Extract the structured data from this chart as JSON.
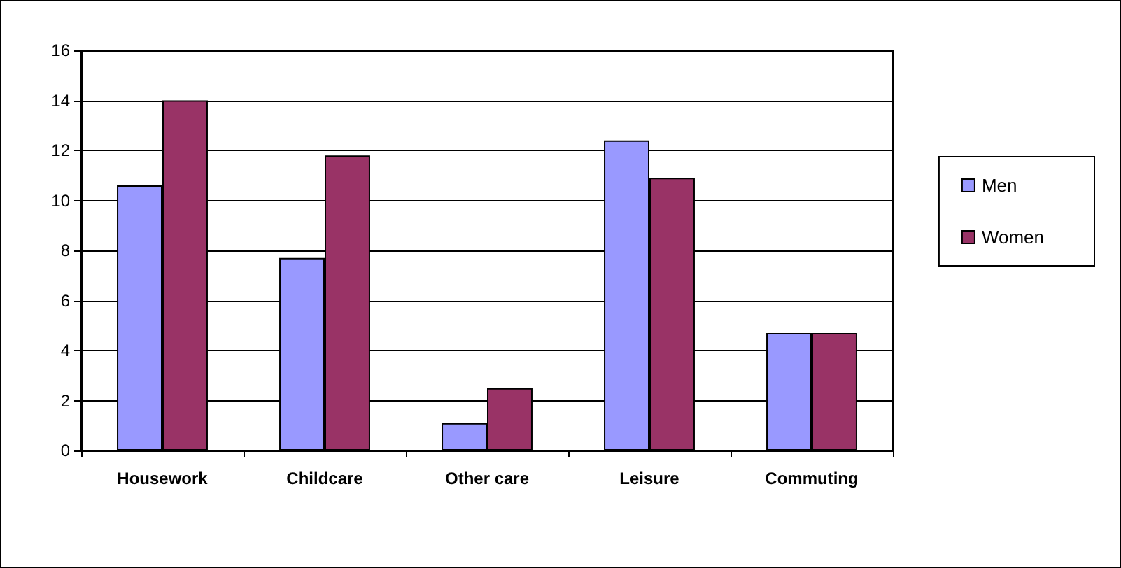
{
  "chart_data": {
    "type": "bar",
    "categories": [
      "Housework",
      "Childcare",
      "Other care",
      "Leisure",
      "Commuting"
    ],
    "series": [
      {
        "name": "Men",
        "color": "#9999ff",
        "values": [
          10.6,
          7.7,
          1.1,
          12.4,
          4.7
        ]
      },
      {
        "name": "Women",
        "color": "#993366",
        "values": [
          14.0,
          11.8,
          2.5,
          10.9,
          4.7
        ]
      }
    ],
    "ylim": [
      0,
      16
    ],
    "yticks": [
      0,
      2,
      4,
      6,
      8,
      10,
      12,
      14,
      16
    ],
    "grid": "y",
    "legend": "right"
  }
}
